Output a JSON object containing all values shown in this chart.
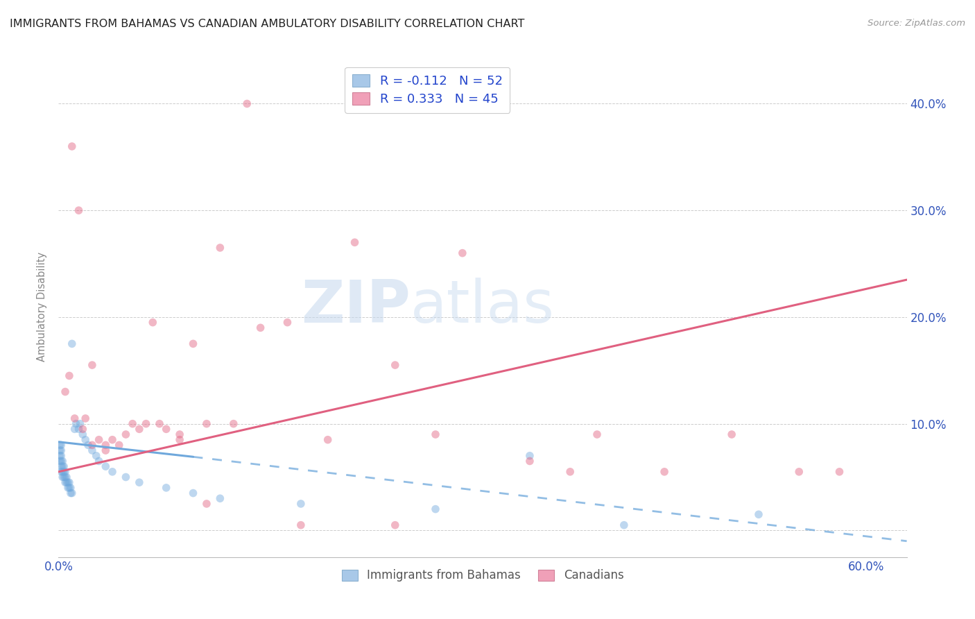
{
  "title": "IMMIGRANTS FROM BAHAMAS VS CANADIAN AMBULATORY DISABILITY CORRELATION CHART",
  "source": "Source: ZipAtlas.com",
  "ylabel": "Ambulatory Disability",
  "xlim": [
    0.0,
    0.63
  ],
  "ylim": [
    -0.025,
    0.445
  ],
  "y_ticks": [
    0.0,
    0.1,
    0.2,
    0.3,
    0.4
  ],
  "legend_entries": [
    {
      "label": "R = -0.112   N = 52"
    },
    {
      "label": "R = 0.333   N = 45"
    }
  ],
  "blue_scatter_x": [
    0.001,
    0.001,
    0.001,
    0.001,
    0.002,
    0.002,
    0.002,
    0.002,
    0.002,
    0.002,
    0.003,
    0.003,
    0.003,
    0.003,
    0.004,
    0.004,
    0.004,
    0.005,
    0.005,
    0.005,
    0.006,
    0.006,
    0.007,
    0.007,
    0.008,
    0.008,
    0.009,
    0.009,
    0.01,
    0.01,
    0.012,
    0.013,
    0.015,
    0.016,
    0.018,
    0.02,
    0.022,
    0.025,
    0.028,
    0.03,
    0.035,
    0.04,
    0.05,
    0.06,
    0.08,
    0.1,
    0.12,
    0.18,
    0.28,
    0.35,
    0.42,
    0.52
  ],
  "blue_scatter_y": [
    0.065,
    0.07,
    0.075,
    0.08,
    0.055,
    0.06,
    0.065,
    0.07,
    0.075,
    0.08,
    0.05,
    0.055,
    0.06,
    0.065,
    0.05,
    0.055,
    0.06,
    0.045,
    0.05,
    0.055,
    0.045,
    0.05,
    0.04,
    0.045,
    0.04,
    0.045,
    0.035,
    0.04,
    0.035,
    0.175,
    0.095,
    0.1,
    0.095,
    0.1,
    0.09,
    0.085,
    0.08,
    0.075,
    0.07,
    0.065,
    0.06,
    0.055,
    0.05,
    0.045,
    0.04,
    0.035,
    0.03,
    0.025,
    0.02,
    0.07,
    0.005,
    0.015
  ],
  "pink_scatter_x": [
    0.01,
    0.015,
    0.02,
    0.025,
    0.03,
    0.035,
    0.04,
    0.05,
    0.06,
    0.07,
    0.08,
    0.09,
    0.1,
    0.11,
    0.12,
    0.13,
    0.15,
    0.17,
    0.2,
    0.22,
    0.25,
    0.28,
    0.3,
    0.35,
    0.4,
    0.45,
    0.5,
    0.55,
    0.58,
    0.005,
    0.008,
    0.012,
    0.018,
    0.025,
    0.035,
    0.045,
    0.055,
    0.065,
    0.075,
    0.09,
    0.11,
    0.14,
    0.18,
    0.25,
    0.38
  ],
  "pink_scatter_y": [
    0.36,
    0.3,
    0.105,
    0.155,
    0.085,
    0.08,
    0.085,
    0.09,
    0.095,
    0.195,
    0.095,
    0.09,
    0.175,
    0.1,
    0.265,
    0.1,
    0.19,
    0.195,
    0.085,
    0.27,
    0.155,
    0.09,
    0.26,
    0.065,
    0.09,
    0.055,
    0.09,
    0.055,
    0.055,
    0.13,
    0.145,
    0.105,
    0.095,
    0.08,
    0.075,
    0.08,
    0.1,
    0.1,
    0.1,
    0.085,
    0.025,
    0.4,
    0.005,
    0.005,
    0.055
  ],
  "blue_line": {
    "x0": 0.0,
    "y0": 0.083,
    "x1": 0.1,
    "y1": 0.069,
    "x2": 0.63,
    "y2": -0.01
  },
  "pink_line": {
    "x0": 0.0,
    "y0": 0.055,
    "x1": 0.63,
    "y1": 0.235
  },
  "background_color": "#ffffff",
  "scatter_size": 70,
  "scatter_alpha": 0.45,
  "blue_color": "#6fa8dc",
  "pink_color": "#e06080",
  "grid_color": "#cccccc",
  "title_fontsize": 11.5,
  "axis_label_color": "#3355bb",
  "watermark_zip": "ZIP",
  "watermark_atlas": "atlas",
  "watermark_color": "#dce8f5"
}
